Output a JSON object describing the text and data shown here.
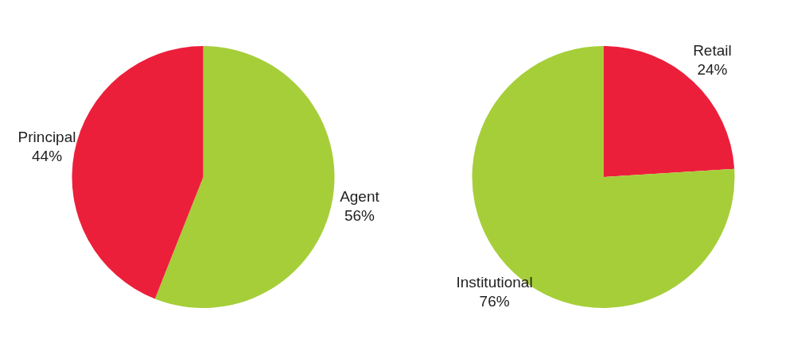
{
  "chart_data": [
    {
      "type": "pie",
      "categories": [
        "Agent",
        "Principal"
      ],
      "values": [
        56,
        44
      ],
      "value_labels": [
        "56%",
        "44%"
      ],
      "colors": [
        "#a6ce39",
        "#ec1f3a"
      ],
      "legend": false
    },
    {
      "type": "pie",
      "categories": [
        "Retail",
        "Institutional"
      ],
      "values": [
        24,
        76
      ],
      "value_labels": [
        "24%",
        "76%"
      ],
      "colors": [
        "#ec1f3a",
        "#a6ce39"
      ],
      "legend": false
    }
  ]
}
